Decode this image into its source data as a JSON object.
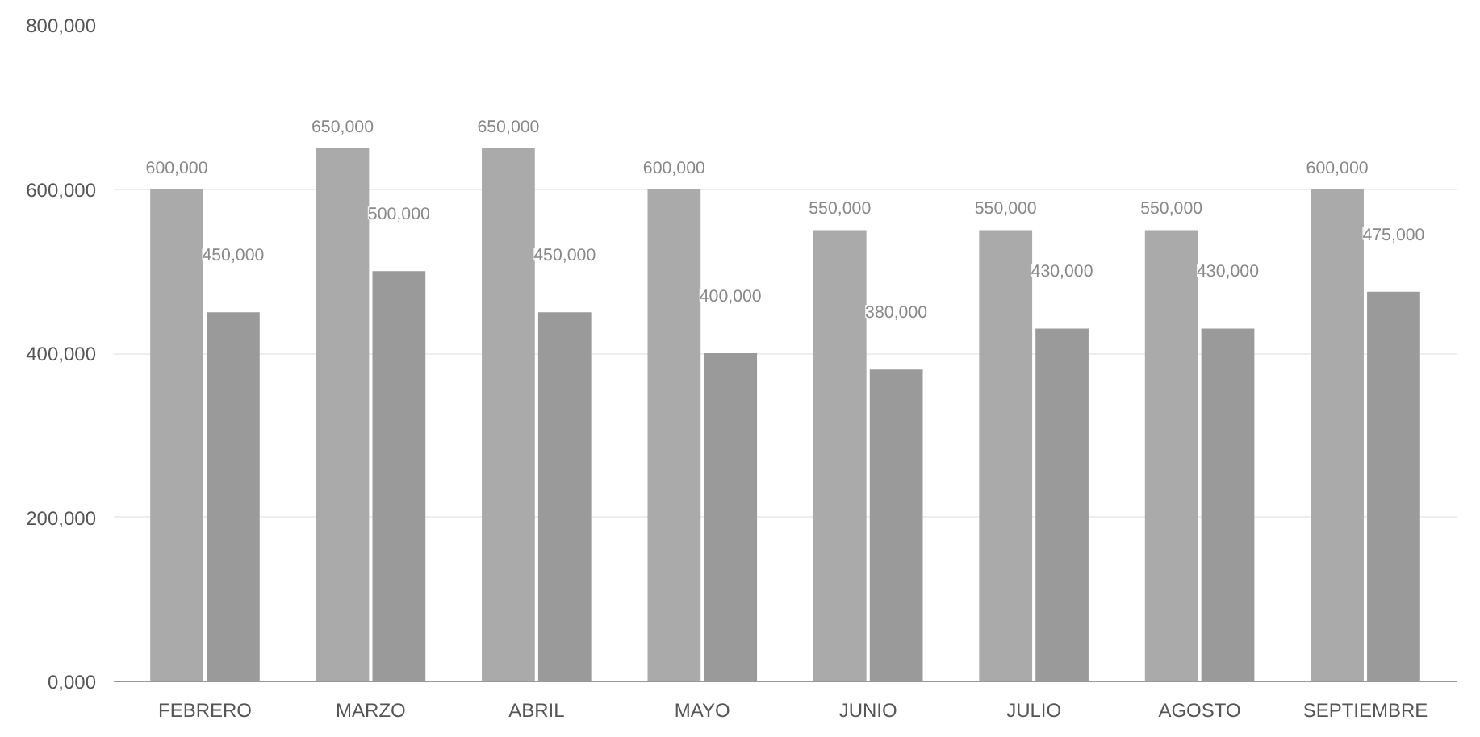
{
  "chart_data": {
    "type": "bar",
    "categories": [
      "FEBRERO",
      "MARZO",
      "ABRIL",
      "MAYO",
      "JUNIO",
      "JULIO",
      "AGOSTO",
      "SEPTIEMBRE"
    ],
    "series": [
      {
        "color": "#aaaaaa",
        "values": [
          600000,
          650000,
          650000,
          600000,
          550000,
          550000,
          550000,
          600000
        ],
        "value_labels": [
          "600,000",
          "650,000",
          "650,000",
          "600,000",
          "550,000",
          "550,000",
          "550,000",
          "600,000"
        ]
      },
      {
        "color": "#9a9a9a",
        "values": [
          450000,
          500000,
          450000,
          400000,
          380000,
          430000,
          430000,
          475000
        ],
        "value_labels": [
          "450,000",
          "500,000",
          "450,000",
          "400,000",
          "380,000",
          "430,000",
          "430,000",
          "475,000"
        ]
      }
    ],
    "ylim": [
      0,
      800000
    ],
    "yticks": [
      {
        "value": 0,
        "label": "0,000"
      },
      {
        "value": 200000,
        "label": "200,000"
      },
      {
        "value": 400000,
        "label": "400,000"
      },
      {
        "value": 600000,
        "label": "600,000"
      },
      {
        "value": 800000,
        "label": "800,000"
      }
    ],
    "grid": "y"
  }
}
